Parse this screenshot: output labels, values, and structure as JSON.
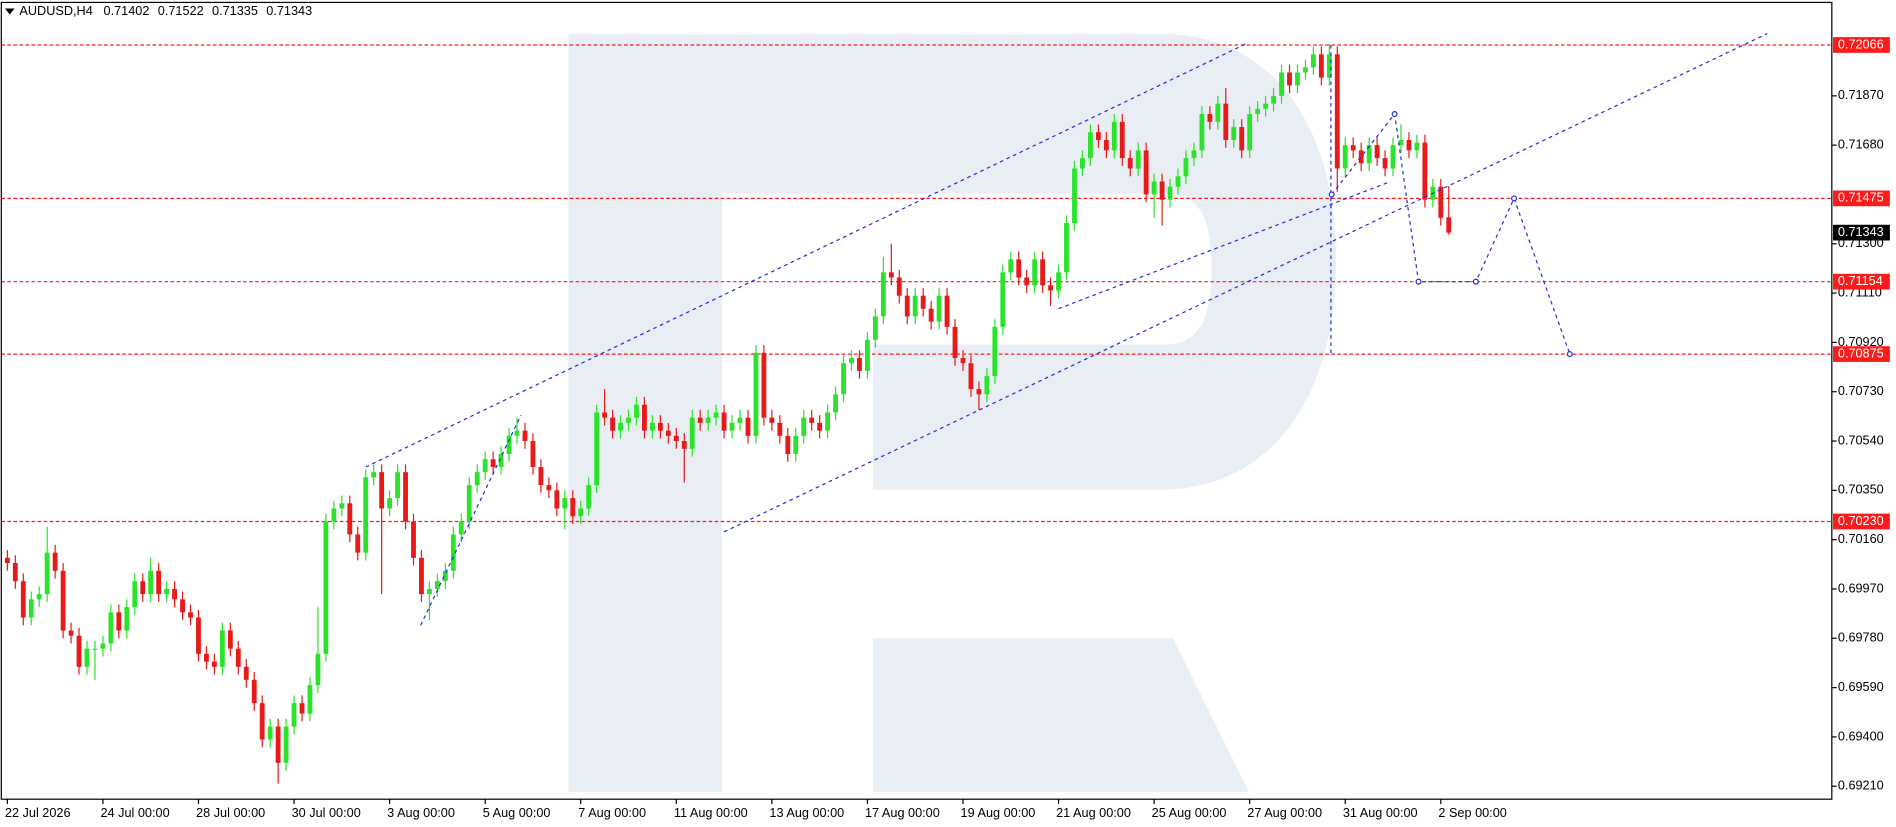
{
  "chart_data": {
    "type": "candlestick",
    "header": {
      "symbol": "AUDUSD,H4",
      "open": 0.71402,
      "high": 0.71522,
      "low": 0.71335,
      "close": 0.71343
    },
    "categories": [
      "22 Jul 2026",
      null,
      null,
      null,
      null,
      null,
      null,
      null,
      null,
      null,
      null,
      null,
      "24 Jul 00:00",
      null,
      null,
      null,
      null,
      null,
      null,
      null,
      null,
      null,
      null,
      null,
      "28 Jul 00:00",
      null,
      null,
      null,
      null,
      null,
      null,
      null,
      null,
      null,
      null,
      null,
      "30 Jul 00:00",
      null,
      null,
      null,
      null,
      null,
      null,
      null,
      null,
      null,
      null,
      null,
      "3 Aug 00:00",
      null,
      null,
      null,
      null,
      null,
      null,
      null,
      null,
      null,
      null,
      null,
      "5 Aug 00:00",
      null,
      null,
      null,
      null,
      null,
      null,
      null,
      null,
      null,
      null,
      null,
      "7 Aug 00:00",
      null,
      null,
      null,
      null,
      null,
      null,
      null,
      null,
      null,
      null,
      null,
      "11 Aug 00:00",
      null,
      null,
      null,
      null,
      null,
      null,
      null,
      null,
      null,
      null,
      null,
      "13 Aug 00:00",
      null,
      null,
      null,
      null,
      null,
      null,
      null,
      null,
      null,
      null,
      null,
      "17 Aug 00:00",
      null,
      null,
      null,
      null,
      null,
      null,
      null,
      null,
      null,
      null,
      null,
      "19 Aug 00:00",
      null,
      null,
      null,
      null,
      null,
      null,
      null,
      null,
      null,
      null,
      null,
      "21 Aug 00:00",
      null,
      null,
      null,
      null,
      null,
      null,
      null,
      null,
      null,
      null,
      null,
      "25 Aug 00:00",
      null,
      null,
      null,
      null,
      null,
      null,
      null,
      null,
      null,
      null,
      null,
      "27 Aug 00:00",
      null,
      null,
      null,
      null,
      null,
      null,
      null,
      null,
      null,
      null,
      null,
      "31 Aug 00:00",
      null,
      null,
      null,
      null,
      null,
      null,
      null,
      null,
      null,
      null,
      null,
      "2 Sep 00:00",
      null
    ],
    "series": [
      {
        "up_color": "#2be32b",
        "down_color": "#e81919",
        "open": [
          0.7009,
          0.7007,
          0.7,
          0.6986,
          0.6993,
          0.6995,
          0.7011,
          0.7004,
          0.6981,
          0.6979,
          0.6967,
          0.6974,
          0.6974,
          0.6976,
          0.6988,
          0.6981,
          0.699,
          0.7,
          0.6995,
          0.7004,
          0.6995,
          0.6997,
          0.6993,
          0.6988,
          0.6986,
          0.6972,
          0.6969,
          0.6967,
          0.6981,
          0.6974,
          0.6967,
          0.6962,
          0.6953,
          0.6939,
          0.6944,
          0.693,
          0.6944,
          0.6953,
          0.6949,
          0.696,
          0.6972,
          0.7023,
          0.7028,
          0.703,
          0.7018,
          0.7011,
          0.704,
          0.7042,
          0.7028,
          0.7032,
          0.7042,
          0.7023,
          0.7009,
          0.6995,
          0.6997,
          0.7,
          0.7004,
          0.7018,
          0.7023,
          0.7037,
          0.7042,
          0.7047,
          0.7044,
          0.7049,
          0.7056,
          0.7058,
          0.7054,
          0.7044,
          0.7037,
          0.7035,
          0.7028,
          0.7032,
          0.7025,
          0.7028,
          0.7037,
          0.7065,
          0.7063,
          0.7058,
          0.7061,
          0.7063,
          0.7068,
          0.7058,
          0.7061,
          0.7058,
          0.7056,
          0.7054,
          0.7051,
          0.7063,
          0.7061,
          0.7063,
          0.7065,
          0.7058,
          0.7061,
          0.7063,
          0.7056,
          0.7088,
          0.7063,
          0.7061,
          0.7056,
          0.7049,
          0.7056,
          0.7063,
          0.7061,
          0.7058,
          0.7065,
          0.7072,
          0.7084,
          0.7086,
          0.7081,
          0.7093,
          0.7102,
          0.7119,
          0.7117,
          0.711,
          0.7102,
          0.711,
          0.7105,
          0.71,
          0.711,
          0.7098,
          0.7086,
          0.7084,
          0.7074,
          0.7072,
          0.7079,
          0.7098,
          0.7119,
          0.7124,
          0.7117,
          0.7114,
          0.7124,
          0.7114,
          0.7112,
          0.7119,
          0.7138,
          0.7159,
          0.7163,
          0.7173,
          0.717,
          0.7166,
          0.7177,
          0.7163,
          0.7159,
          0.7166,
          0.7149,
          0.7154,
          0.7147,
          0.7152,
          0.7156,
          0.7163,
          0.7166,
          0.718,
          0.7177,
          0.7184,
          0.717,
          0.7175,
          0.7166,
          0.718,
          0.7182,
          0.7184,
          0.7187,
          0.7196,
          0.7191,
          0.7196,
          0.7198,
          0.7203,
          0.7194,
          0.7203,
          0.7159,
          0.7168,
          0.7166,
          0.7161,
          0.7168,
          0.7163,
          0.7159,
          0.7168,
          0.717,
          0.7166,
          0.7169,
          0.7147,
          0.7152,
          0.71402
        ],
        "high": [
          0.7012,
          0.701,
          0.7003,
          0.6996,
          0.6998,
          0.7021,
          0.7014,
          0.7007,
          0.6984,
          0.6982,
          0.6977,
          0.6977,
          0.6979,
          0.6991,
          0.6991,
          0.6993,
          0.7003,
          0.7003,
          0.7009,
          0.7007,
          0.7,
          0.7,
          0.6996,
          0.6991,
          0.6989,
          0.6975,
          0.6972,
          0.6984,
          0.6984,
          0.6977,
          0.697,
          0.6965,
          0.6956,
          0.6947,
          0.6947,
          0.6947,
          0.6956,
          0.6956,
          0.6963,
          0.699,
          0.7026,
          0.7031,
          0.7033,
          0.7033,
          0.7021,
          0.7043,
          0.7045,
          0.7045,
          0.7035,
          0.7045,
          0.7045,
          0.7026,
          0.7012,
          0.7,
          0.7003,
          0.7007,
          0.7021,
          0.7026,
          0.704,
          0.7045,
          0.705,
          0.705,
          0.7052,
          0.7059,
          0.7063,
          0.7061,
          0.7057,
          0.7047,
          0.704,
          0.7038,
          0.7035,
          0.7035,
          0.7031,
          0.704,
          0.7068,
          0.7074,
          0.7066,
          0.7064,
          0.7066,
          0.7071,
          0.7071,
          0.7064,
          0.7064,
          0.7061,
          0.7059,
          0.7057,
          0.7066,
          0.7066,
          0.7066,
          0.7068,
          0.7068,
          0.7064,
          0.7066,
          0.7066,
          0.7091,
          0.7091,
          0.7066,
          0.7064,
          0.7059,
          0.7059,
          0.7066,
          0.7066,
          0.7064,
          0.7068,
          0.7075,
          0.7087,
          0.7089,
          0.7089,
          0.7096,
          0.7105,
          0.7125,
          0.713,
          0.712,
          0.7113,
          0.7113,
          0.7113,
          0.7108,
          0.7113,
          0.7113,
          0.7101,
          0.7089,
          0.7087,
          0.7077,
          0.7082,
          0.7101,
          0.7122,
          0.7127,
          0.7127,
          0.712,
          0.7127,
          0.7127,
          0.7117,
          0.7122,
          0.7141,
          0.7162,
          0.7166,
          0.7176,
          0.7176,
          0.7173,
          0.718,
          0.718,
          0.7166,
          0.7169,
          0.7169,
          0.7157,
          0.7157,
          0.7155,
          0.7159,
          0.7166,
          0.7169,
          0.7183,
          0.7183,
          0.7187,
          0.719,
          0.7178,
          0.7178,
          0.7183,
          0.7185,
          0.7187,
          0.719,
          0.7199,
          0.7199,
          0.7199,
          0.7201,
          0.7206,
          0.7206,
          0.7207,
          0.7206,
          0.7171,
          0.7171,
          0.7169,
          0.7171,
          0.7171,
          0.7166,
          0.7171,
          0.7176,
          0.7173,
          0.7172,
          0.7172,
          0.7155,
          0.7155,
          0.71522
        ],
        "low": [
          0.7004,
          0.6997,
          0.6983,
          0.6983,
          0.699,
          0.6992,
          0.7001,
          0.6978,
          0.6976,
          0.6964,
          0.6964,
          0.6962,
          0.6971,
          0.6973,
          0.6978,
          0.6978,
          0.6987,
          0.6992,
          0.6992,
          0.6992,
          0.6992,
          0.699,
          0.6985,
          0.6983,
          0.6969,
          0.6966,
          0.6964,
          0.6964,
          0.6971,
          0.6964,
          0.6959,
          0.695,
          0.6936,
          0.6936,
          0.6922,
          0.6927,
          0.6941,
          0.6946,
          0.6946,
          0.6957,
          0.6969,
          0.702,
          0.7025,
          0.7015,
          0.7008,
          0.7008,
          0.7037,
          0.6995,
          0.7025,
          0.7029,
          0.702,
          0.7006,
          0.6992,
          0.6985,
          0.6994,
          0.6997,
          0.7001,
          0.7015,
          0.702,
          0.7034,
          0.7039,
          0.7041,
          0.7041,
          0.7046,
          0.7053,
          0.7051,
          0.7041,
          0.7034,
          0.7032,
          0.7025,
          0.702,
          0.7022,
          0.7022,
          0.7025,
          0.7034,
          0.706,
          0.7055,
          0.7055,
          0.7058,
          0.706,
          0.7055,
          0.7055,
          0.7055,
          0.7053,
          0.7051,
          0.7038,
          0.7048,
          0.7058,
          0.7058,
          0.706,
          0.7055,
          0.7055,
          0.7058,
          0.7053,
          0.7053,
          0.706,
          0.7058,
          0.7053,
          0.7046,
          0.7046,
          0.7053,
          0.7058,
          0.7055,
          0.7055,
          0.7062,
          0.7069,
          0.7081,
          0.7078,
          0.7078,
          0.709,
          0.7099,
          0.7114,
          0.7107,
          0.7099,
          0.7099,
          0.7102,
          0.7097,
          0.7097,
          0.7095,
          0.7083,
          0.7081,
          0.7071,
          0.7066,
          0.7069,
          0.7076,
          0.7095,
          0.7116,
          0.7114,
          0.7111,
          0.7111,
          0.7111,
          0.7106,
          0.7109,
          0.7116,
          0.7135,
          0.7156,
          0.716,
          0.7167,
          0.7163,
          0.7163,
          0.716,
          0.7156,
          0.7156,
          0.7146,
          0.714,
          0.7137,
          0.7144,
          0.7149,
          0.7153,
          0.716,
          0.7163,
          0.7174,
          0.7174,
          0.7167,
          0.7167,
          0.7163,
          0.7163,
          0.7177,
          0.7179,
          0.7181,
          0.7184,
          0.7188,
          0.7188,
          0.7193,
          0.7195,
          0.7191,
          0.7191,
          0.715,
          0.7156,
          0.7163,
          0.7158,
          0.7158,
          0.716,
          0.7156,
          0.7156,
          0.7165,
          0.7163,
          0.7163,
          0.7144,
          0.7144,
          0.7137,
          0.71335
        ],
        "close": [
          0.7007,
          0.7,
          0.6986,
          0.6993,
          0.6995,
          0.7011,
          0.7004,
          0.6981,
          0.6979,
          0.6967,
          0.6974,
          0.6974,
          0.6976,
          0.6988,
          0.6981,
          0.699,
          0.7,
          0.6995,
          0.7004,
          0.6995,
          0.6997,
          0.6993,
          0.6988,
          0.6986,
          0.6972,
          0.6969,
          0.6967,
          0.6981,
          0.6974,
          0.6967,
          0.6962,
          0.6953,
          0.6939,
          0.6944,
          0.693,
          0.6944,
          0.6953,
          0.6949,
          0.696,
          0.6972,
          0.7023,
          0.7028,
          0.703,
          0.7018,
          0.7011,
          0.704,
          0.7042,
          0.7028,
          0.7032,
          0.7042,
          0.7023,
          0.7009,
          0.6995,
          0.6997,
          0.7,
          0.7004,
          0.7018,
          0.7023,
          0.7037,
          0.7042,
          0.7047,
          0.7044,
          0.7049,
          0.7056,
          0.7058,
          0.7054,
          0.7044,
          0.7037,
          0.7035,
          0.7028,
          0.7032,
          0.7025,
          0.7028,
          0.7037,
          0.7065,
          0.7063,
          0.7058,
          0.7061,
          0.7063,
          0.7068,
          0.7058,
          0.7061,
          0.7058,
          0.7056,
          0.7054,
          0.7051,
          0.7063,
          0.7061,
          0.7063,
          0.7065,
          0.7058,
          0.7061,
          0.7063,
          0.7056,
          0.7088,
          0.7063,
          0.7061,
          0.7056,
          0.7049,
          0.7056,
          0.7063,
          0.7061,
          0.7058,
          0.7065,
          0.7072,
          0.7084,
          0.7086,
          0.7081,
          0.7093,
          0.7102,
          0.7119,
          0.7117,
          0.711,
          0.7102,
          0.711,
          0.7105,
          0.71,
          0.711,
          0.7098,
          0.7086,
          0.7084,
          0.7074,
          0.7072,
          0.7079,
          0.7098,
          0.7119,
          0.7124,
          0.7117,
          0.7114,
          0.7124,
          0.7114,
          0.7112,
          0.7119,
          0.7138,
          0.7159,
          0.7163,
          0.7173,
          0.717,
          0.7166,
          0.7177,
          0.7163,
          0.7159,
          0.7166,
          0.7149,
          0.7154,
          0.7147,
          0.7152,
          0.7156,
          0.7163,
          0.7166,
          0.718,
          0.7177,
          0.7184,
          0.717,
          0.7175,
          0.7166,
          0.718,
          0.7182,
          0.7184,
          0.7187,
          0.7196,
          0.7191,
          0.7196,
          0.7198,
          0.7203,
          0.7194,
          0.7203,
          0.7159,
          0.7168,
          0.7166,
          0.7161,
          0.7168,
          0.7163,
          0.7159,
          0.7168,
          0.717,
          0.7166,
          0.7169,
          0.7147,
          0.7152,
          0.714,
          0.71343
        ]
      }
    ],
    "xlim": [
      -0.76,
      229.1
    ],
    "ylim": [
      0.6916,
      0.7223
    ],
    "yticks": [
      {
        "value": 0.7187,
        "label": "0.71870"
      },
      {
        "value": 0.7168,
        "label": "0.71680"
      },
      {
        "value": 0.713,
        "label": "0.71300"
      },
      {
        "value": 0.7111,
        "label": "0.71110"
      },
      {
        "value": 0.7092,
        "label": "0.70920"
      },
      {
        "value": 0.7073,
        "label": "0.70730"
      },
      {
        "value": 0.7054,
        "label": "0.70540"
      },
      {
        "value": 0.7035,
        "label": "0.70350"
      },
      {
        "value": 0.7016,
        "label": "0.70160"
      },
      {
        "value": 0.6997,
        "label": "0.69970"
      },
      {
        "value": 0.6978,
        "label": "0.69780"
      },
      {
        "value": 0.6959,
        "label": "0.69590"
      },
      {
        "value": 0.694,
        "label": "0.69400"
      },
      {
        "value": 0.6921,
        "label": "0.69210"
      }
    ],
    "grid": false,
    "levels": [
      0.72066,
      0.71475,
      0.71154,
      0.70875,
      {
        "value": 0.7023,
        "label": "0.70230"
      }
    ],
    "level_color": "#ff1a1a",
    "current_price": 0.71343,
    "current_price_color": "#000000",
    "line_color": "#1f2fd6",
    "trendlines": [
      {
        "points": [
          [
            45,
            0.7044
          ],
          [
            155.5,
            0.7207
          ]
        ]
      },
      {
        "points": [
          [
            90,
            0.7019
          ],
          [
            221,
            0.7211
          ]
        ]
      },
      {
        "points": [
          [
            132,
            0.7105
          ],
          [
            173.7,
            0.7154
          ]
        ]
      },
      {
        "points": [
          [
            51.9,
            0.6983
          ],
          [
            64.5,
            0.7064
          ]
        ]
      },
      {
        "points": [
          [
            166.2,
            0.72066
          ],
          [
            166.2,
            0.70875
          ]
        ]
      }
    ],
    "forecast": {
      "points": [
        [
          166.3,
          0.7149
        ],
        [
          174.2,
          0.718
        ],
        [
          177.2,
          0.71154
        ],
        [
          184.4,
          0.71154
        ],
        [
          189.2,
          0.71475
        ],
        [
          196.2,
          0.70875
        ]
      ]
    }
  }
}
